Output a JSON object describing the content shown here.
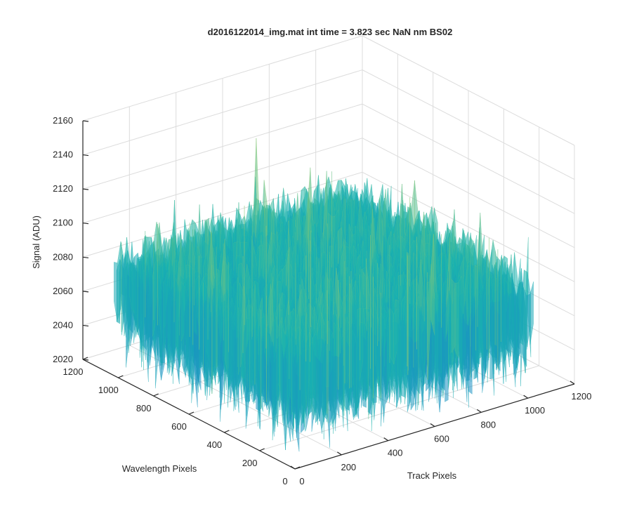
{
  "chart_data": {
    "type": "surface",
    "title": "d2016122014_img.mat int time = 3.823 sec  NaN nm BS02",
    "xlabel": "Track Pixels",
    "ylabel": "Wavelength Pixels",
    "zlabel": "Signal (ADU)",
    "xlim": [
      0,
      1200
    ],
    "ylim": [
      0,
      1200
    ],
    "zlim": [
      2020,
      2160
    ],
    "x_ticks": [
      "0",
      "200",
      "400",
      "600",
      "800",
      "1000",
      "1200"
    ],
    "y_ticks": [
      "0",
      "200",
      "400",
      "600",
      "800",
      "1000",
      "1200"
    ],
    "z_ticks": [
      "2020",
      "2040",
      "2060",
      "2080",
      "2100",
      "2120",
      "2140",
      "2160"
    ],
    "grid": true,
    "colormap": "parula",
    "surface_extent": {
      "x": [
        0,
        1024
      ],
      "y": [
        0,
        1024
      ]
    },
    "signal_mean": 2085,
    "signal_range": [
      2025,
      2152
    ]
  },
  "colors": {
    "low": "#1f6fd6",
    "mid": "#18b3b0",
    "high": "#e6d94a",
    "axis": "#262626",
    "grid": "#dcdcdc"
  }
}
